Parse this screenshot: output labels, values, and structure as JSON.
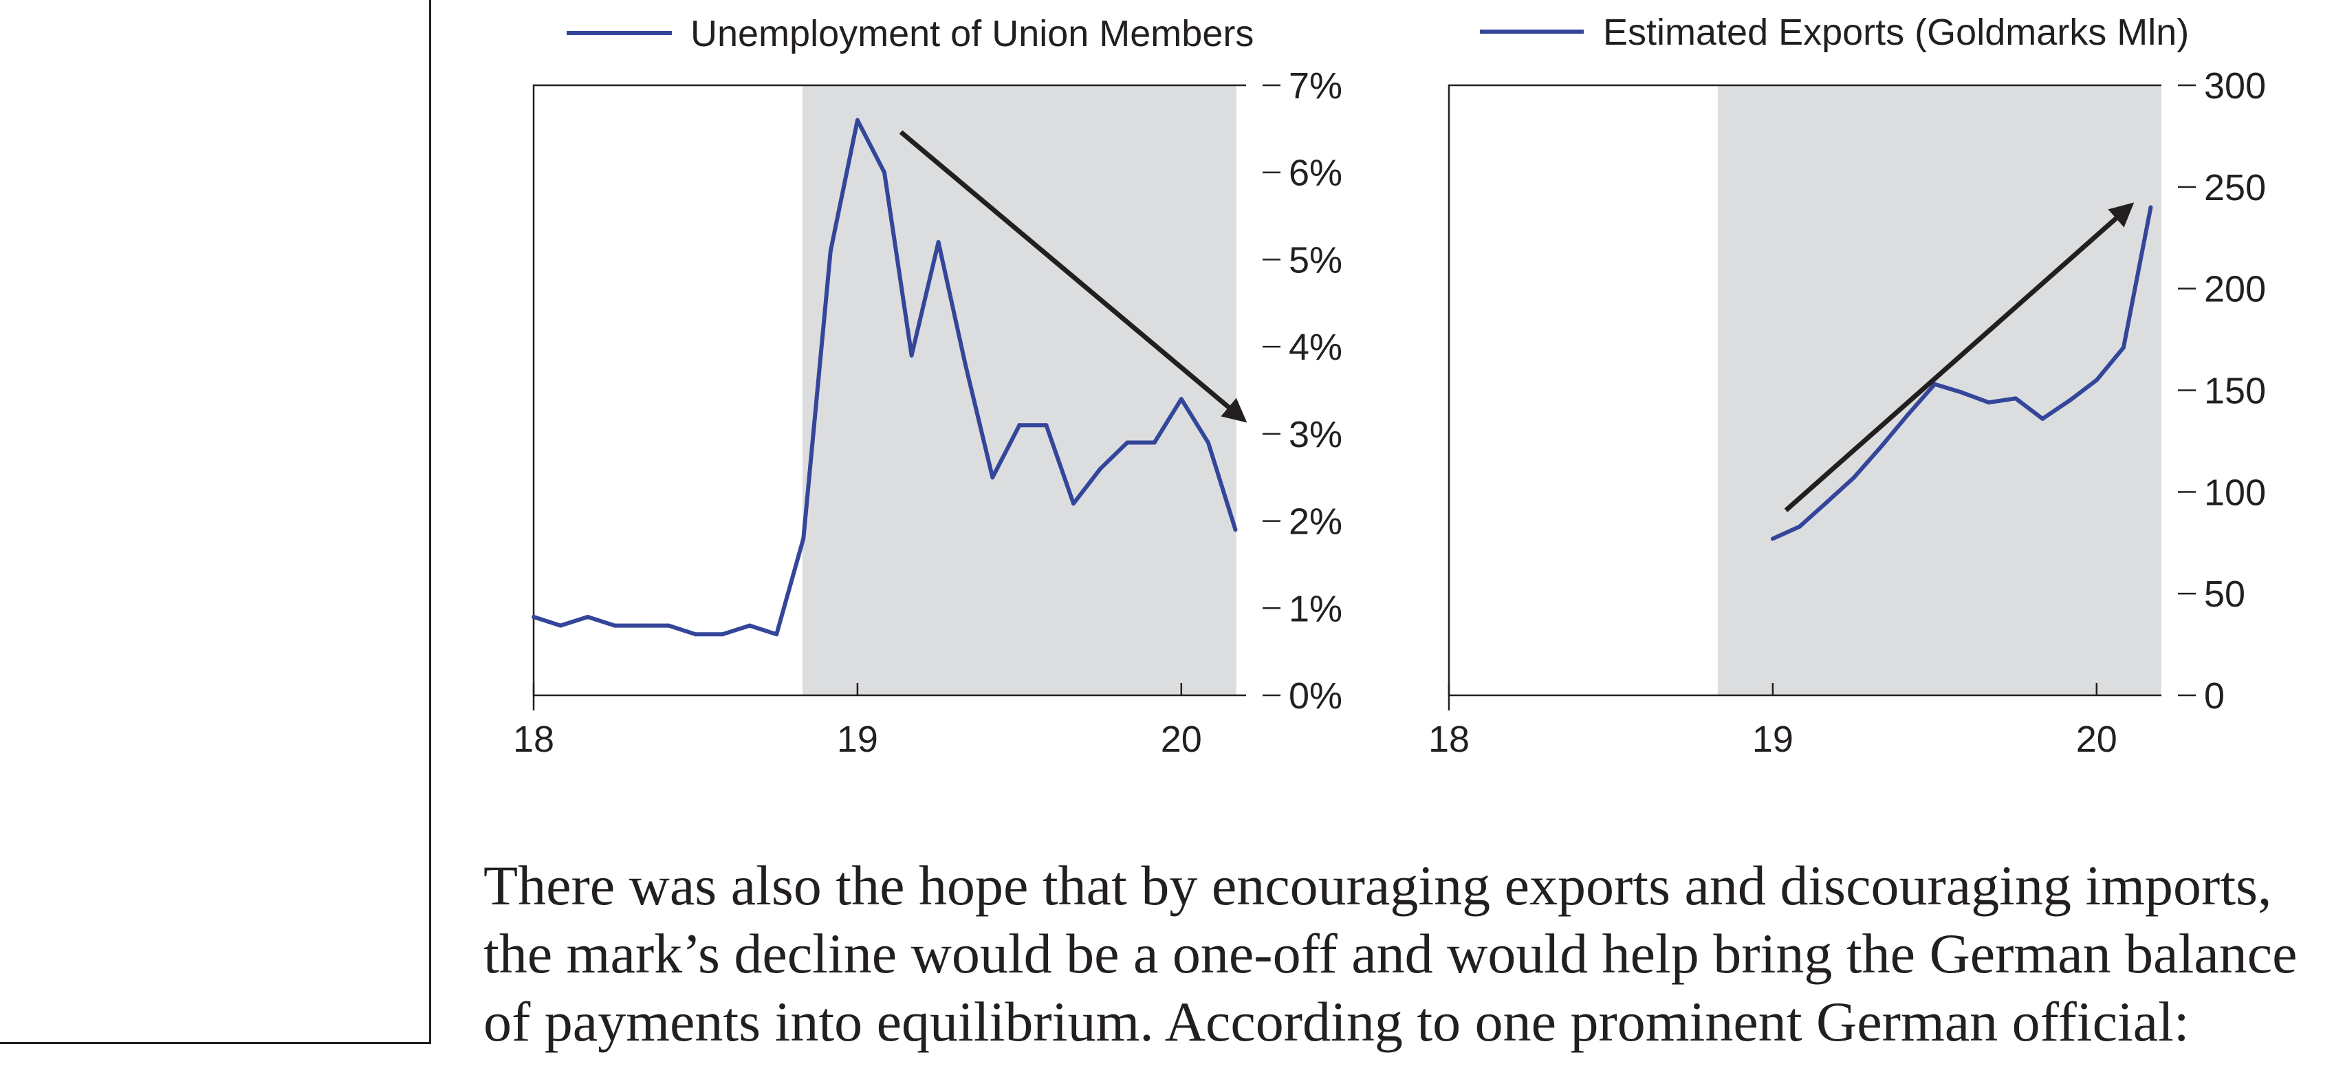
{
  "chart_data": [
    {
      "type": "line",
      "legend": "Unemployment of Union Members",
      "legend_position": "top",
      "color": "#34469a",
      "x_ticks": [
        "18",
        "19",
        "20"
      ],
      "xlim": [
        1918,
        1920.2
      ],
      "y_axis_side": "right",
      "ylim": [
        0,
        7
      ],
      "y_ticks": [
        "0%",
        "1%",
        "2%",
        "3%",
        "4%",
        "5%",
        "6%",
        "7%"
      ],
      "y_unit": "%",
      "shaded_range": [
        1918.83,
        1920.17
      ],
      "grid": false,
      "series": [
        {
          "name": "Unemployment of Union Members",
          "x": [
            1918.0,
            1918.083,
            1918.167,
            1918.25,
            1918.333,
            1918.417,
            1918.5,
            1918.583,
            1918.667,
            1918.75,
            1918.833,
            1918.917,
            1919.0,
            1919.083,
            1919.167,
            1919.25,
            1919.333,
            1919.417,
            1919.5,
            1919.583,
            1919.667,
            1919.75,
            1919.833,
            1919.917,
            1920.0,
            1920.083,
            1920.167
          ],
          "values": [
            0.9,
            0.8,
            0.9,
            0.8,
            0.8,
            0.8,
            0.7,
            0.7,
            0.8,
            0.7,
            1.8,
            5.1,
            6.6,
            6.0,
            3.9,
            5.2,
            3.8,
            2.5,
            3.1,
            3.1,
            2.2,
            2.6,
            2.9,
            2.9,
            3.4,
            2.9,
            1.9
          ]
        }
      ],
      "annotation": "downward-trend-arrow"
    },
    {
      "type": "line",
      "legend": "Estimated Exports (Goldmarks Mln)",
      "legend_position": "top",
      "color": "#34469a",
      "x_ticks": [
        "18",
        "19",
        "20"
      ],
      "xlim": [
        1918,
        1920.2
      ],
      "y_axis_side": "right",
      "ylim": [
        0,
        300
      ],
      "y_ticks": [
        "0",
        "50",
        "100",
        "150",
        "200",
        "250",
        "300"
      ],
      "shaded_range": [
        1918.83,
        1920.2
      ],
      "grid": false,
      "series": [
        {
          "name": "Estimated Exports (Goldmarks Mln)",
          "x": [
            1919.0,
            1919.083,
            1919.167,
            1919.25,
            1919.333,
            1919.417,
            1919.5,
            1919.583,
            1919.667,
            1919.75,
            1919.833,
            1919.917,
            1920.0,
            1920.083,
            1920.167
          ],
          "values": [
            77,
            83,
            95,
            107,
            122,
            138,
            153,
            149,
            144,
            146,
            136,
            145,
            155,
            171,
            240
          ]
        }
      ],
      "annotation": "upward-trend-arrow"
    }
  ],
  "paragraph": {
    "line1": "There was also the hope that by encouraging exports and discouraging imports,",
    "line2": "the mark’s decline would be a one-off and would help bring the German balance",
    "line3": "of payments into equilibrium. According to one prominent German official:"
  }
}
